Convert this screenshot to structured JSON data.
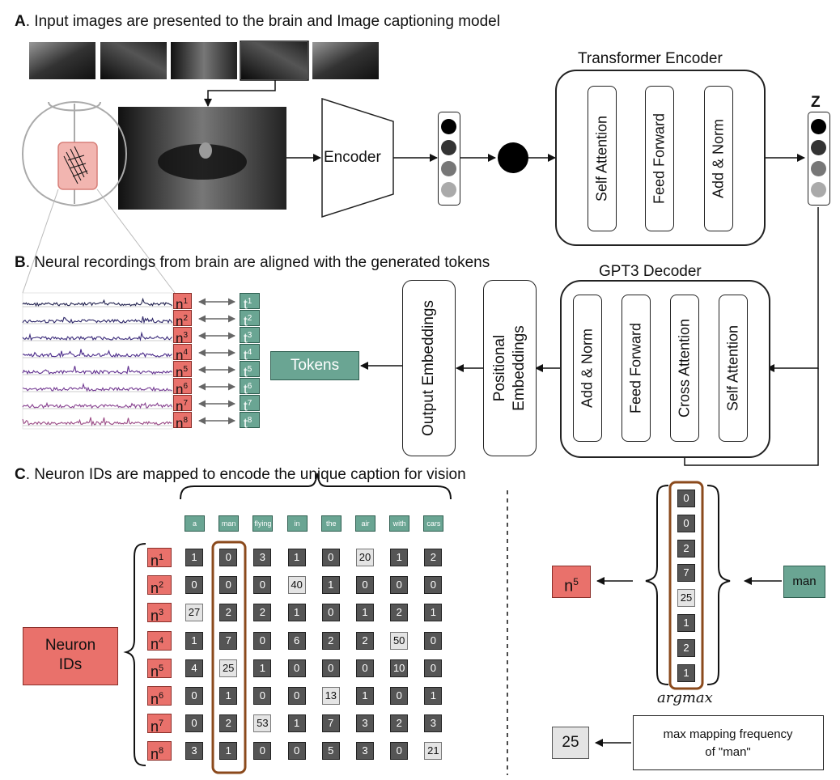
{
  "sections": {
    "a_letter": "A",
    "a_text": ". Input images are presented to the brain and Image captioning model",
    "b_letter": "B",
    "b_text": ". Neural recordings from brain are aligned with the generated tokens",
    "c_letter": "C",
    "c_text": ". Neuron IDs are mapped to encode the unique caption for vision"
  },
  "encoder": {
    "label": "Encoder"
  },
  "transformer": {
    "title": "Transformer Encoder",
    "blocks": [
      "Self Attention",
      "Feed Forward",
      "Add & Norm"
    ]
  },
  "z_label": "Z",
  "decoder": {
    "title": "GPT3 Decoder",
    "blocks": [
      "Add & Norm",
      "Feed Forward",
      "Cross Attention",
      "Self Attention"
    ]
  },
  "positional": {
    "line1": "Positional",
    "line2": "Embeddings"
  },
  "output_embeddings": "Output Embeddings",
  "tokens_label": "Tokens",
  "neuron_trace_labels": {
    "base_n": "n",
    "base_t": "t",
    "indices": [
      "1",
      "2",
      "3",
      "4",
      "5",
      "6",
      "7",
      "8"
    ]
  },
  "trace_colors": [
    "#1f1f4d",
    "#2b2466",
    "#3a2a7a",
    "#4b2b8a",
    "#61308f",
    "#743a92",
    "#87408f",
    "#9a4a85"
  ],
  "mapping_table": {
    "columns": [
      "a",
      "man",
      "flying",
      "in",
      "the",
      "air",
      "with",
      "cars"
    ],
    "rows": [
      {
        "label_base": "n",
        "label_idx": "1",
        "values": [
          "1",
          "0",
          "3",
          "1",
          "0",
          "20",
          "1",
          "2"
        ]
      },
      {
        "label_base": "n",
        "label_idx": "2",
        "values": [
          "0",
          "0",
          "0",
          "40",
          "1",
          "0",
          "0",
          "0"
        ]
      },
      {
        "label_base": "n",
        "label_idx": "3",
        "values": [
          "27",
          "2",
          "2",
          "1",
          "0",
          "1",
          "2",
          "1"
        ]
      },
      {
        "label_base": "n",
        "label_idx": "4",
        "values": [
          "1",
          "7",
          "0",
          "6",
          "2",
          "2",
          "50",
          "0"
        ]
      },
      {
        "label_base": "n",
        "label_idx": "5",
        "values": [
          "4",
          "25",
          "1",
          "0",
          "0",
          "0",
          "10",
          "0"
        ]
      },
      {
        "label_base": "n",
        "label_idx": "6",
        "values": [
          "0",
          "1",
          "0",
          "0",
          "13",
          "1",
          "0",
          "1"
        ]
      },
      {
        "label_base": "n",
        "label_idx": "7",
        "values": [
          "0",
          "2",
          "53",
          "1",
          "7",
          "3",
          "2",
          "3"
        ]
      },
      {
        "label_base": "n",
        "label_idx": "8",
        "values": [
          "3",
          "1",
          "0",
          "0",
          "5",
          "3",
          "0",
          "21"
        ]
      }
    ],
    "highlight_max": [
      false,
      false,
      true,
      false,
      true,
      true,
      false,
      true
    ]
  },
  "neuron_ids": {
    "line1": "Neuron",
    "line2": "IDs"
  },
  "argmax": {
    "column": [
      "0",
      "0",
      "2",
      "7",
      "25",
      "1",
      "2",
      "1"
    ],
    "label": "argmax",
    "input_word": "man",
    "output_base": "n",
    "output_idx": "5",
    "max_value": "25",
    "note_line1": "max mapping frequency",
    "note_line2": "of \"man\""
  },
  "colors": {
    "teal": "#6aa593",
    "red": "#e9716b",
    "highlight_border": "#8b4a1c",
    "dark_cell": "#555555",
    "light_cell": "#e4e4e4"
  }
}
